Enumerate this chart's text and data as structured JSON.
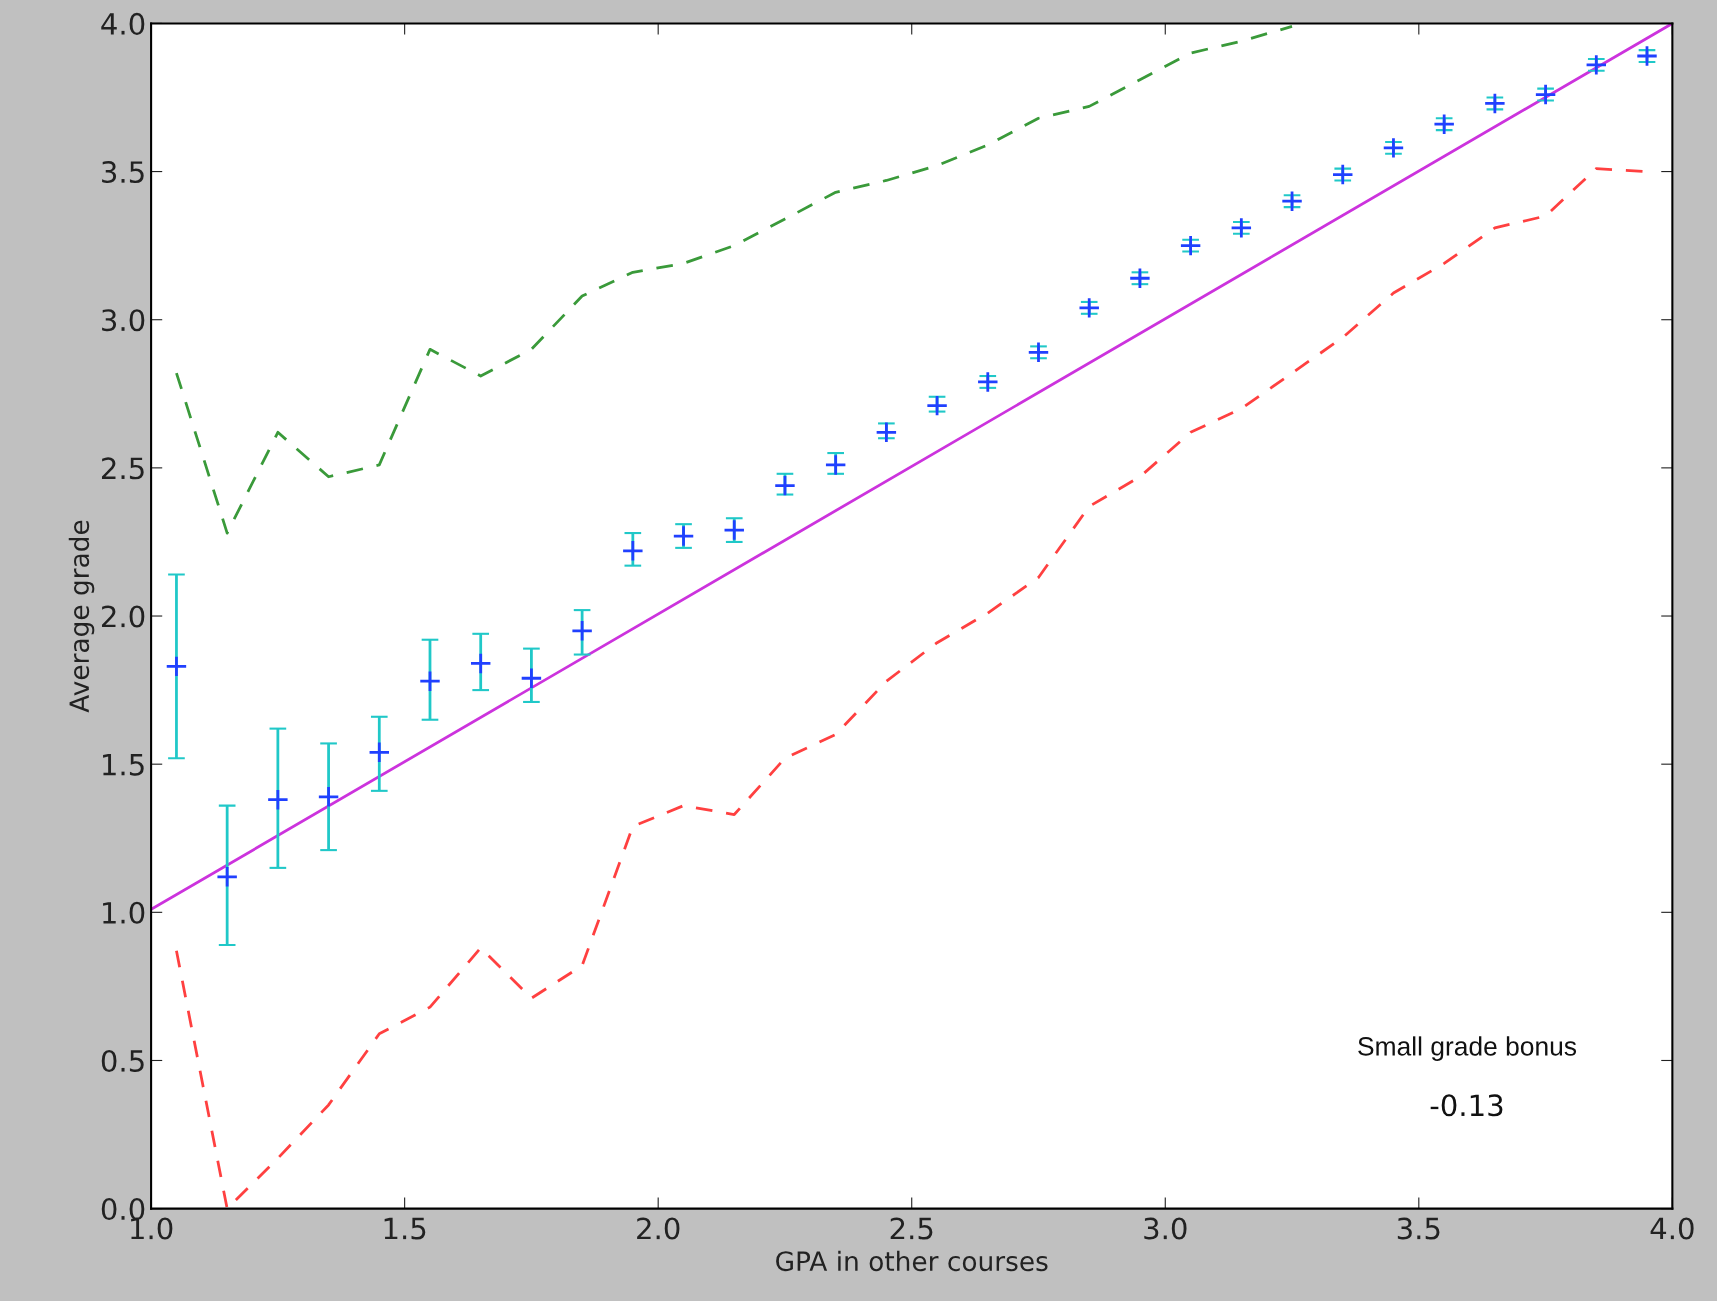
{
  "chart_data": {
    "type": "scatter",
    "xlabel": "GPA in other courses",
    "ylabel": "Average grade",
    "xlim": [
      1.0,
      4.0
    ],
    "ylim": [
      0.0,
      4.0
    ],
    "xticks": [
      {
        "value": 1.0,
        "label": "1.0"
      },
      1.5,
      {
        "value": 2.0,
        "label": "2.0"
      },
      2.5,
      {
        "value": 3.0,
        "label": "3.0"
      },
      3.5,
      {
        "value": 4.0,
        "label": "4.0"
      }
    ],
    "yticks": [
      {
        "value": 0.0,
        "label": "0.0"
      },
      0.5,
      {
        "value": 1.0,
        "label": "1.0"
      },
      1.5,
      {
        "value": 2.0,
        "label": "2.0"
      },
      2.5,
      {
        "value": 3.0,
        "label": "3.0"
      },
      3.5,
      {
        "value": 4.0,
        "label": "4.0"
      }
    ],
    "grid": false,
    "legend": false,
    "annotations": [
      "Small grade bonus",
      "-0.13"
    ],
    "series": [
      {
        "marker": "cross",
        "color": "#2040ff",
        "x": [
          1.05,
          1.15,
          1.25,
          1.35,
          1.45,
          1.55,
          1.65,
          1.75,
          1.85,
          1.95,
          2.05,
          2.15,
          2.25,
          2.35,
          2.45,
          2.55,
          2.65,
          2.75,
          2.85,
          2.95,
          3.05,
          3.15,
          3.25,
          3.35,
          3.45,
          3.55,
          3.65,
          3.75,
          3.85,
          3.95
        ],
        "values": [
          1.83,
          1.12,
          1.38,
          1.39,
          1.54,
          1.78,
          1.84,
          1.79,
          1.95,
          2.22,
          2.27,
          2.29,
          2.44,
          2.51,
          2.62,
          2.71,
          2.79,
          2.89,
          3.04,
          3.14,
          3.25,
          3.31,
          3.4,
          3.49,
          3.58,
          3.66,
          3.73,
          3.76,
          3.86,
          3.89
        ],
        "errors": [
          [
            1.52,
            2.14
          ],
          [
            0.89,
            1.36
          ],
          [
            1.15,
            1.62
          ],
          [
            1.21,
            1.57
          ],
          [
            1.41,
            1.66
          ],
          [
            1.65,
            1.92
          ],
          [
            1.75,
            1.94
          ],
          [
            1.71,
            1.89
          ],
          [
            1.87,
            2.02
          ],
          [
            2.17,
            2.28
          ],
          [
            2.23,
            2.31
          ],
          [
            2.25,
            2.33
          ],
          [
            2.41,
            2.48
          ],
          [
            2.48,
            2.55
          ],
          [
            2.6,
            2.65
          ],
          [
            2.69,
            2.74
          ],
          [
            2.77,
            2.81
          ],
          [
            2.87,
            2.91
          ],
          [
            3.02,
            3.06
          ],
          [
            3.12,
            3.16
          ],
          [
            3.23,
            3.27
          ],
          [
            3.29,
            3.33
          ],
          [
            3.38,
            3.42
          ],
          [
            3.47,
            3.51
          ],
          [
            3.56,
            3.6
          ],
          [
            3.64,
            3.68
          ],
          [
            3.71,
            3.75
          ],
          [
            3.74,
            3.78
          ],
          [
            3.84,
            3.88
          ],
          [
            3.87,
            3.91
          ]
        ]
      },
      {
        "type": "line",
        "line_style": "dashed",
        "color": "#3a9a3a",
        "x": [
          1.05,
          1.15,
          1.25,
          1.35,
          1.45,
          1.55,
          1.65,
          1.75,
          1.85,
          1.95,
          2.05,
          2.15,
          2.25,
          2.35,
          2.45,
          2.55,
          2.65,
          2.75,
          2.85,
          2.95,
          3.05,
          3.15,
          3.25
        ],
        "values": [
          2.82,
          2.28,
          2.62,
          2.47,
          2.51,
          2.9,
          2.81,
          2.9,
          3.08,
          3.16,
          3.19,
          3.25,
          3.34,
          3.43,
          3.47,
          3.52,
          3.59,
          3.68,
          3.72,
          3.81,
          3.9,
          3.94,
          3.99
        ]
      },
      {
        "type": "line",
        "line_style": "dashed",
        "color": "#ff4040",
        "x": [
          1.05,
          1.15,
          1.25,
          1.35,
          1.45,
          1.55,
          1.65,
          1.75,
          1.85,
          1.95,
          2.05,
          2.15,
          2.25,
          2.35,
          2.45,
          2.55,
          2.65,
          2.75,
          2.85,
          2.95,
          3.05,
          3.15,
          3.25,
          3.35,
          3.45,
          3.55,
          3.65,
          3.75,
          3.85,
          3.95
        ],
        "values": [
          0.87,
          0.0,
          0.17,
          0.35,
          0.59,
          0.68,
          0.88,
          0.71,
          0.82,
          1.29,
          1.36,
          1.33,
          1.52,
          1.6,
          1.78,
          1.91,
          2.01,
          2.13,
          2.37,
          2.47,
          2.62,
          2.7,
          2.82,
          2.94,
          3.09,
          3.19,
          3.31,
          3.35,
          3.51,
          3.5
        ]
      },
      {
        "type": "line",
        "line_style": "solid",
        "color": "#cc33dd",
        "x": [
          1.0,
          4.0
        ],
        "values": [
          1.01,
          4.0
        ]
      }
    ]
  }
}
